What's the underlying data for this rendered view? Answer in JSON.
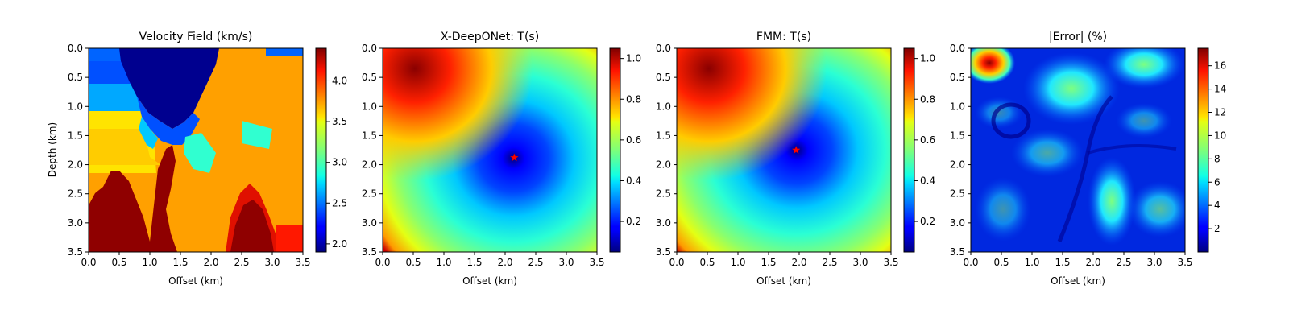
{
  "chart_data": [
    {
      "type": "heatmap",
      "title": "Velocity Field (km/s)",
      "xlabel": "Offset (km)",
      "ylabel": "Depth (km)",
      "xlim": [
        0,
        3.5
      ],
      "ylim": [
        3.5,
        0
      ],
      "xticks": [
        "0.0",
        "0.5",
        "1.0",
        "1.5",
        "2.0",
        "2.5",
        "3.0",
        "3.5"
      ],
      "yticks": [
        "0.0",
        "0.5",
        "1.0",
        "1.5",
        "2.0",
        "2.5",
        "3.0",
        "3.5"
      ],
      "colormap": "jet",
      "colorbar": {
        "range": [
          1.9,
          4.4
        ],
        "ticks": [
          "2.0",
          "2.5",
          "3.0",
          "3.5",
          "4.0"
        ]
      },
      "layers": [
        {
          "name": "top-left layers",
          "values": [
            2.4,
            2.6,
            2.9,
            3.7
          ]
        },
        {
          "name": "central low-velocity wedge",
          "value": 1.9
        },
        {
          "name": "right block",
          "value": 3.6
        },
        {
          "name": "deep high-velocity bodies",
          "value": 4.4
        }
      ]
    },
    {
      "type": "heatmap",
      "title": "X-DeepONet: T(s)",
      "xlabel": "Offset (km)",
      "xlim": [
        0,
        3.5
      ],
      "ylim": [
        3.5,
        0
      ],
      "xticks": [
        "0.0",
        "0.5",
        "1.0",
        "1.5",
        "2.0",
        "2.5",
        "3.0",
        "3.5"
      ],
      "yticks": [
        "0.0",
        "0.5",
        "1.0",
        "1.5",
        "2.0",
        "2.5",
        "3.0",
        "3.5"
      ],
      "colormap": "jet",
      "colorbar": {
        "range": [
          0.05,
          1.05
        ],
        "ticks": [
          "0.2",
          "0.4",
          "0.6",
          "0.8",
          "1.0"
        ]
      },
      "source": {
        "x": 2.15,
        "y": 1.88,
        "marker": "red star"
      }
    },
    {
      "type": "heatmap",
      "title": "FMM: T(s)",
      "xlabel": "Offset (km)",
      "xlim": [
        0,
        3.5
      ],
      "ylim": [
        3.5,
        0
      ],
      "xticks": [
        "0.0",
        "0.5",
        "1.0",
        "1.5",
        "2.0",
        "2.5",
        "3.0",
        "3.5"
      ],
      "yticks": [
        "0.0",
        "0.5",
        "1.0",
        "1.5",
        "2.0",
        "2.5",
        "3.0",
        "3.5"
      ],
      "colormap": "jet",
      "colorbar": {
        "range": [
          0.05,
          1.05
        ],
        "ticks": [
          "0.2",
          "0.4",
          "0.6",
          "0.8",
          "1.0"
        ]
      },
      "source": {
        "x": 1.95,
        "y": 1.75,
        "marker": "red star"
      }
    },
    {
      "type": "heatmap",
      "title": "|Error| (%)",
      "xlabel": "Offset (km)",
      "xlim": [
        0,
        3.5
      ],
      "ylim": [
        3.5,
        0
      ],
      "xticks": [
        "0.0",
        "0.5",
        "1.0",
        "1.5",
        "2.0",
        "2.5",
        "3.0",
        "3.5"
      ],
      "yticks": [
        "0.0",
        "0.5",
        "1.0",
        "1.5",
        "2.0",
        "2.5",
        "3.0",
        "3.5"
      ],
      "colormap": "jet",
      "colorbar": {
        "range": [
          0,
          17.5
        ],
        "ticks": [
          "2",
          "4",
          "6",
          "8",
          "10",
          "12",
          "14",
          "16"
        ]
      },
      "peak": {
        "x": 0.3,
        "y": 0.25,
        "value": 17
      }
    }
  ]
}
